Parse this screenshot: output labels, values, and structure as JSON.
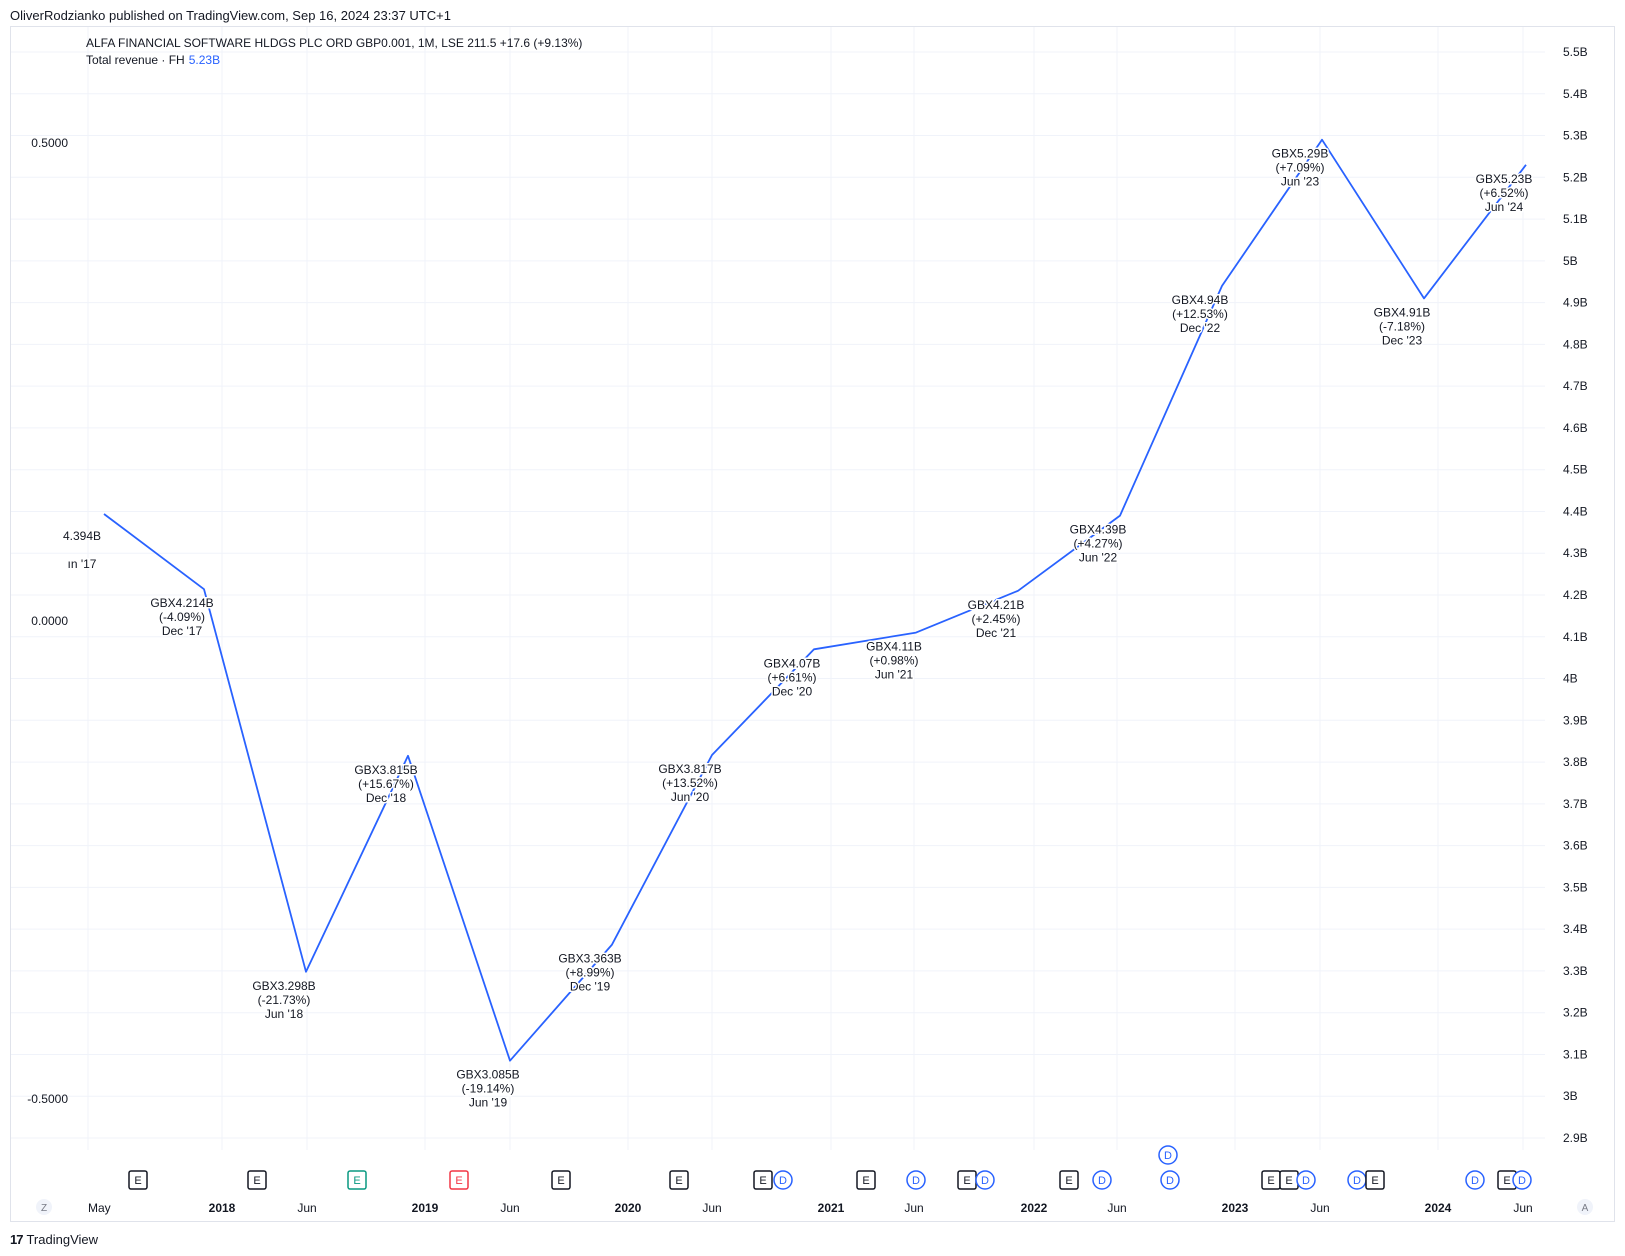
{
  "publisher_line": "OliverRodzianko published on TradingView.com, Sep 16, 2024 23:37 UTC+1",
  "legend": {
    "symbol_line": "ALFA FINANCIAL SOFTWARE HLDGS PLC ORD GBP0.001, 1M, LSE  211.5  +17.6 (+9.13%)",
    "indicator_label": "Total revenue · FH",
    "indicator_value": "5.23B"
  },
  "footer": {
    "logo_mark": "17",
    "brand": "TradingView"
  },
  "corner_labels": {
    "left": "Z",
    "right": "A"
  },
  "colors": {
    "line": "#2962ff",
    "grid": "#f0f3fa",
    "text": "#131722",
    "earnings_green": "#089981",
    "earnings_red": "#f23645",
    "dividend": "#2962ff"
  },
  "chart_data": {
    "type": "line",
    "title": "",
    "series": [
      {
        "name": "Total revenue · FH",
        "points": [
          {
            "x": "Jun '17",
            "y": 4.394,
            "value_label": "4.394B",
            "change_label": "",
            "date_label": "ın '17"
          },
          {
            "x": "Dec '17",
            "y": 4.214,
            "value_label": "GBX4.214B",
            "change_label": "(-4.09%)",
            "date_label": "Dec '17"
          },
          {
            "x": "Jun '18",
            "y": 3.298,
            "value_label": "GBX3.298B",
            "change_label": "(-21.73%)",
            "date_label": "Jun '18"
          },
          {
            "x": "Dec '18",
            "y": 3.815,
            "value_label": "GBX3.815B",
            "change_label": "(+15.67%)",
            "date_label": "Dec '18"
          },
          {
            "x": "Jun '19",
            "y": 3.085,
            "value_label": "GBX3.085B",
            "change_label": "(-19.14%)",
            "date_label": "Jun '19"
          },
          {
            "x": "Dec '19",
            "y": 3.363,
            "value_label": "GBX3.363B",
            "change_label": "(+8.99%)",
            "date_label": "Dec '19"
          },
          {
            "x": "Jun '20",
            "y": 3.817,
            "value_label": "GBX3.817B",
            "change_label": "(+13.52%)",
            "date_label": "Jun '20"
          },
          {
            "x": "Dec '20",
            "y": 4.07,
            "value_label": "GBX4.07B",
            "change_label": "(+6.61%)",
            "date_label": "Dec '20"
          },
          {
            "x": "Jun '21",
            "y": 4.11,
            "value_label": "GBX4.11B",
            "change_label": "(+0.98%)",
            "date_label": "Jun '21"
          },
          {
            "x": "Dec '21",
            "y": 4.21,
            "value_label": "GBX4.21B",
            "change_label": "(+2.45%)",
            "date_label": "Dec '21"
          },
          {
            "x": "Jun '22",
            "y": 4.39,
            "value_label": "GBX4.39B",
            "change_label": "(+4.27%)",
            "date_label": "Jun '22"
          },
          {
            "x": "Dec '22",
            "y": 4.94,
            "value_label": "GBX4.94B",
            "change_label": "(+12.53%)",
            "date_label": "Dec '22"
          },
          {
            "x": "Jun '23",
            "y": 5.29,
            "value_label": "GBX5.29B",
            "change_label": "(+7.09%)",
            "date_label": "Jun '23"
          },
          {
            "x": "Dec '23",
            "y": 4.91,
            "value_label": "GBX4.91B",
            "change_label": "(-7.18%)",
            "date_label": "Dec '23"
          },
          {
            "x": "Jun '24",
            "y": 5.23,
            "value_label": "GBX5.23B",
            "change_label": "(+6.52%)",
            "date_label": "Jun '24"
          }
        ]
      }
    ],
    "right_axis": {
      "ylim": [
        2.9,
        5.5
      ],
      "ticks": [
        "5.5B",
        "5.4B",
        "5.3B",
        "5.2B",
        "5.1B",
        "5B",
        "4.9B",
        "4.8B",
        "4.7B",
        "4.6B",
        "4.5B",
        "4.4B",
        "4.3B",
        "4.2B",
        "4.1B",
        "4B",
        "3.9B",
        "3.8B",
        "3.7B",
        "3.6B",
        "3.5B",
        "3.4B",
        "3.3B",
        "3.2B",
        "3.1B",
        "3B",
        "2.9B"
      ]
    },
    "left_axis": {
      "ticks": [
        "0.5000",
        "0.0000",
        "-0.5000"
      ]
    },
    "x_axis": {
      "ticks": [
        {
          "label": "May",
          "bold": false
        },
        {
          "label": "2018",
          "bold": true
        },
        {
          "label": "Jun",
          "bold": false
        },
        {
          "label": "2019",
          "bold": true
        },
        {
          "label": "Jun",
          "bold": false
        },
        {
          "label": "2020",
          "bold": true
        },
        {
          "label": "Jun",
          "bold": false
        },
        {
          "label": "2021",
          "bold": true
        },
        {
          "label": "Jun",
          "bold": false
        },
        {
          "label": "2022",
          "bold": true
        },
        {
          "label": "Jun",
          "bold": false
        },
        {
          "label": "2023",
          "bold": true
        },
        {
          "label": "Jun",
          "bold": false
        },
        {
          "label": "2024",
          "bold": true
        },
        {
          "label": "Jun",
          "bold": false
        }
      ]
    },
    "events": [
      {
        "type": "E",
        "style": "gray"
      },
      {
        "type": "E",
        "style": "gray"
      },
      {
        "type": "E",
        "style": "green"
      },
      {
        "type": "E",
        "style": "red"
      },
      {
        "type": "E",
        "style": "gray"
      },
      {
        "type": "E",
        "style": "gray"
      },
      {
        "type": "E",
        "style": "gray"
      },
      {
        "type": "D",
        "style": "blue"
      },
      {
        "type": "E",
        "style": "gray"
      },
      {
        "type": "D",
        "style": "blue"
      },
      {
        "type": "E",
        "style": "gray"
      },
      {
        "type": "D",
        "style": "blue"
      },
      {
        "type": "E",
        "style": "gray"
      },
      {
        "type": "D",
        "style": "blue"
      },
      {
        "type": "D",
        "style": "blue"
      },
      {
        "type": "E",
        "style": "gray"
      },
      {
        "type": "E",
        "style": "gray"
      },
      {
        "type": "D",
        "style": "blue"
      },
      {
        "type": "D",
        "style": "blue"
      },
      {
        "type": "E",
        "style": "gray"
      },
      {
        "type": "D",
        "style": "blue"
      },
      {
        "type": "E",
        "style": "gray"
      },
      {
        "type": "D",
        "style": "blue"
      }
    ],
    "grid": true,
    "legend_position": "top-left"
  }
}
